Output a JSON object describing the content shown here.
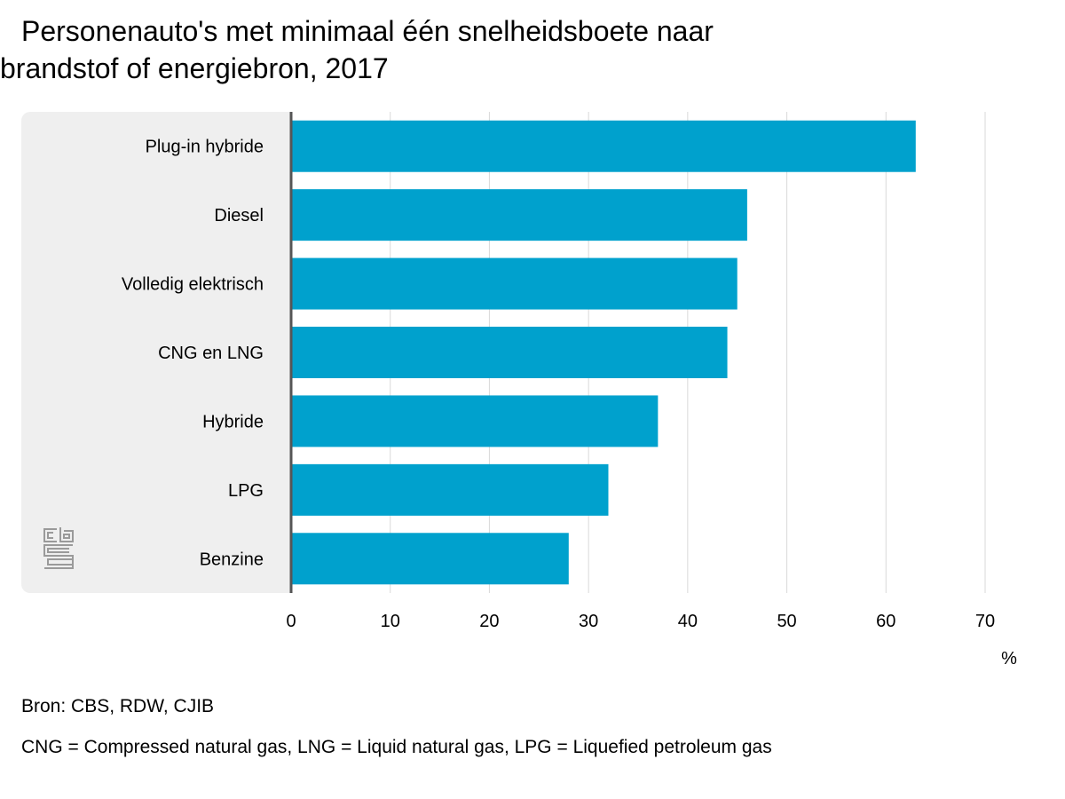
{
  "title_line1": "Personenauto's met minimaal één snelheidsboete naar",
  "title_line2": "brandstof of energiebron, 2017",
  "logo_text": "cbs",
  "source": "Bron: CBS, RDW, CJIB",
  "note": "CNG = Compressed natural gas, LNG = Liquid natural gas, LPG = Liquefied petroleum gas",
  "colors": {
    "bar": "#00a1cd",
    "grid": "#d9d9d9",
    "axis": "#555555",
    "panel": "#efefef"
  },
  "chart_data": {
    "type": "bar",
    "orientation": "horizontal",
    "categories": [
      "Plug-in hybride",
      "Diesel",
      "Volledig elektrisch",
      "CNG en LNG",
      "Hybride",
      "LPG",
      "Benzine"
    ],
    "values": [
      63,
      46,
      45,
      44,
      37,
      32,
      28
    ],
    "xlabel": "%",
    "xlim": [
      0,
      70
    ],
    "xticks": [
      0,
      10,
      20,
      30,
      40,
      50,
      60,
      70
    ],
    "grid": true
  }
}
